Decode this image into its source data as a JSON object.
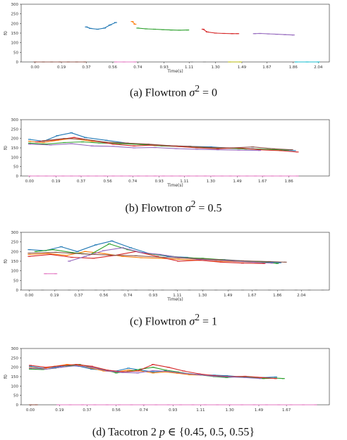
{
  "chart_data": [
    {
      "type": "line",
      "caption_prefix": "(a) Flowtron ",
      "caption_math": "σ",
      "caption_sup": "2",
      "caption_suffix": " = 0",
      "xlabel": "Time(s)",
      "ylabel": "f0",
      "xticks": [
        "0.00",
        "0.19",
        "0.37",
        "0.56",
        "0.74",
        "0.93",
        "1.11",
        "1.30",
        "1.49",
        "1.67",
        "1.86",
        "2.04"
      ],
      "yticks": [
        "0",
        "50",
        "100",
        "150",
        "200",
        "250",
        "300"
      ],
      "ylim": [
        0,
        300
      ],
      "xlim": [
        -0.1,
        2.12
      ],
      "grid": false,
      "series": [
        {
          "x": [
            0.37,
            0.4,
            0.45,
            0.5,
            0.54,
            0.58
          ],
          "y": [
            182,
            174,
            170,
            176,
            192,
            205
          ]
        },
        {
          "x": [
            0.7,
            0.72
          ],
          "y": [
            210,
            196
          ]
        },
        {
          "x": [
            0.74,
            0.8,
            0.86,
            0.92,
            0.98,
            1.04,
            1.1
          ],
          "y": [
            176,
            172,
            170,
            168,
            166,
            165,
            166
          ]
        },
        {
          "x": [
            1.21,
            1.24,
            1.3,
            1.36,
            1.42,
            1.46
          ],
          "y": [
            170,
            156,
            150,
            148,
            147,
            147
          ]
        },
        {
          "x": [
            1.58,
            1.62,
            1.68,
            1.74,
            1.8,
            1.86
          ],
          "y": [
            147,
            148,
            146,
            144,
            142,
            140
          ]
        },
        {
          "x": [
            0.0,
            0.06,
            0.12,
            0.18,
            0.24,
            0.3,
            0.36
          ],
          "y": [
            0,
            0,
            0,
            0,
            0,
            0,
            0
          ]
        },
        {
          "x": [
            0.58,
            0.64,
            0.72
          ],
          "y": [
            0,
            0,
            0
          ]
        },
        {
          "x": [
            1.13,
            1.22
          ],
          "y": [
            0,
            0
          ]
        },
        {
          "x": [
            1.4,
            1.48
          ],
          "y": [
            0,
            0
          ]
        },
        {
          "x": [
            1.88,
            1.96,
            2.04
          ],
          "y": [
            0,
            0,
            0
          ]
        }
      ]
    },
    {
      "type": "line",
      "caption_prefix": "(b) Flowtron ",
      "caption_math": "σ",
      "caption_sup": "2",
      "caption_suffix": " = 0.5",
      "xlabel": "Time(s)",
      "ylabel": "f0",
      "xticks": [
        "0.00",
        "0.19",
        "0.37",
        "0.56",
        "0.74",
        "0.93",
        "1.11",
        "1.30",
        "1.49",
        "1.67",
        "1.86"
      ],
      "yticks": [
        "0",
        "50",
        "100",
        "150",
        "200",
        "250",
        "300"
      ],
      "ylim": [
        0,
        300
      ],
      "xlim": [
        -0.06,
        2.15
      ],
      "grid": false,
      "series": [
        {
          "x": [
            0.0,
            0.1,
            0.2,
            0.3,
            0.4,
            0.55,
            0.7,
            0.85,
            1.0,
            1.15,
            1.3,
            1.45,
            1.6,
            1.75,
            1.9
          ],
          "y": [
            195,
            185,
            215,
            230,
            205,
            190,
            175,
            168,
            160,
            158,
            155,
            148,
            145,
            140,
            135
          ]
        },
        {
          "x": [
            0.0,
            0.1,
            0.2,
            0.3,
            0.45,
            0.6,
            0.75,
            0.9,
            1.05,
            1.2,
            1.35,
            1.5,
            1.65,
            1.8
          ],
          "y": [
            185,
            178,
            190,
            200,
            185,
            178,
            170,
            162,
            160,
            152,
            150,
            146,
            143,
            138
          ]
        },
        {
          "x": [
            0.0,
            0.12,
            0.25,
            0.38,
            0.5,
            0.65,
            0.8,
            0.95,
            1.1,
            1.25,
            1.4,
            1.55,
            1.7,
            1.85
          ],
          "y": [
            175,
            170,
            178,
            182,
            176,
            172,
            168,
            160,
            156,
            150,
            148,
            144,
            142,
            138
          ]
        },
        {
          "x": [
            0.05,
            0.18,
            0.32,
            0.46,
            0.6,
            0.75,
            0.9,
            1.05,
            1.2,
            1.35,
            1.5,
            1.65,
            1.8,
            1.92
          ],
          "y": [
            182,
            192,
            205,
            188,
            170,
            160,
            165,
            158,
            150,
            145,
            150,
            140,
            135,
            128
          ]
        },
        {
          "x": [
            0.0,
            0.15,
            0.3,
            0.45,
            0.6,
            0.75,
            0.9,
            1.05,
            1.2,
            1.35,
            1.5,
            1.65
          ],
          "y": [
            170,
            165,
            172,
            160,
            158,
            150,
            152,
            146,
            142,
            140,
            138,
            136
          ]
        },
        {
          "x": [
            0.1,
            0.25,
            0.4,
            0.55,
            0.7,
            0.85,
            1.0,
            1.15,
            1.3,
            1.45,
            1.6,
            1.75,
            1.88
          ],
          "y": [
            188,
            200,
            195,
            180,
            175,
            170,
            162,
            158,
            152,
            150,
            155,
            145,
            140
          ]
        },
        {
          "x": [
            0.0,
            0.06,
            0.12,
            0.18,
            0.24,
            0.3,
            0.36,
            0.42,
            0.48,
            0.54,
            0.6,
            0.66,
            0.72,
            0.78,
            0.84,
            0.9,
            0.96,
            1.02,
            1.08,
            1.14,
            1.2,
            1.26,
            1.32,
            1.38,
            1.44,
            1.5,
            1.56,
            1.62,
            1.68,
            1.74,
            1.8,
            1.86,
            1.92
          ],
          "y": [
            0,
            0,
            0,
            0,
            0,
            0,
            0,
            0,
            0,
            0,
            0,
            0,
            0,
            0,
            0,
            0,
            0,
            0,
            0,
            0,
            0,
            0,
            0,
            0,
            0,
            0,
            0,
            0,
            0,
            0,
            0,
            0,
            0
          ]
        }
      ]
    },
    {
      "type": "line",
      "caption_prefix": "(c) Flowtron ",
      "caption_math": "σ",
      "caption_sup": "2",
      "caption_suffix": " = 1",
      "xlabel": "Time(s)",
      "ylabel": "f0",
      "xticks": [
        "0.00",
        "0.19",
        "0.37",
        "0.56",
        "0.74",
        "0.93",
        "1.11",
        "1.30",
        "1.49",
        "1.67",
        "1.86",
        "2.04"
      ],
      "yticks": [
        "0",
        "50",
        "100",
        "150",
        "200",
        "250",
        "300"
      ],
      "ylim": [
        0,
        300
      ],
      "xlim": [
        -0.06,
        2.25
      ],
      "grid": false,
      "series": [
        {
          "x": [
            0.0,
            0.12,
            0.24,
            0.36,
            0.5,
            0.62,
            0.76,
            0.9,
            1.04,
            1.18,
            1.32,
            1.46,
            1.6,
            1.74,
            1.88
          ],
          "y": [
            210,
            205,
            225,
            200,
            235,
            255,
            220,
            190,
            175,
            170,
            160,
            158,
            152,
            148,
            142
          ]
        },
        {
          "x": [
            0.0,
            0.14,
            0.28,
            0.42,
            0.56,
            0.7,
            0.84,
            0.98,
            1.12,
            1.26,
            1.4,
            1.54,
            1.68,
            1.82
          ],
          "y": [
            185,
            190,
            180,
            200,
            190,
            175,
            168,
            165,
            160,
            155,
            150,
            148,
            145,
            140
          ]
        },
        {
          "x": [
            0.05,
            0.18,
            0.32,
            0.46,
            0.6,
            0.74,
            0.88,
            1.02,
            1.16,
            1.3,
            1.44,
            1.58,
            1.72,
            1.86
          ],
          "y": [
            200,
            210,
            195,
            185,
            240,
            210,
            190,
            180,
            168,
            165,
            158,
            150,
            148,
            138
          ]
        },
        {
          "x": [
            0.0,
            0.16,
            0.32,
            0.48,
            0.64,
            0.8,
            0.96,
            1.12,
            1.28,
            1.44,
            1.6,
            1.76
          ],
          "y": [
            175,
            185,
            170,
            165,
            180,
            200,
            175,
            150,
            155,
            145,
            140,
            138
          ]
        },
        {
          "x": [
            0.3,
            0.42,
            0.56,
            0.7,
            0.84,
            0.98,
            1.12,
            1.26,
            1.4,
            1.54,
            1.68,
            1.82
          ],
          "y": [
            150,
            175,
            205,
            220,
            195,
            185,
            170,
            160,
            155,
            150,
            145,
            140
          ]
        },
        {
          "x": [
            0.0,
            0.2,
            0.4,
            0.6,
            0.8,
            1.0,
            1.2,
            1.4,
            1.6,
            1.8,
            1.92
          ],
          "y": [
            192,
            196,
            188,
            182,
            178,
            170,
            165,
            158,
            152,
            148,
            145
          ]
        },
        {
          "x": [
            0.12,
            0.2
          ],
          "y": [
            85,
            85
          ]
        },
        {
          "x": [
            0.0,
            0.1,
            0.2,
            0.3,
            0.4,
            0.5,
            0.6,
            0.7,
            0.8,
            0.9,
            1.0,
            1.1,
            1.2,
            1.3,
            1.4,
            1.5,
            1.6,
            1.7,
            1.8,
            1.9,
            2.0,
            2.1,
            2.2
          ],
          "y": [
            0,
            0,
            0,
            0,
            0,
            0,
            0,
            0,
            0,
            0,
            0,
            0,
            0,
            0,
            0,
            0,
            0,
            0,
            0,
            0,
            0,
            0,
            0
          ]
        }
      ]
    },
    {
      "type": "line",
      "caption_prefix": "(d) Tacotron 2 ",
      "caption_math": "p",
      "caption_sup": "",
      "caption_suffix": " ∈ {0.45, 0.5, 0.55}",
      "xlabel": "",
      "ylabel": "f0",
      "xticks": [
        "0.00",
        "0.19",
        "0.37",
        "0.56",
        "0.74",
        "0.93",
        "1.11",
        "1.30",
        "1.49",
        "1.67"
      ],
      "yticks": [
        "0",
        "50",
        "100",
        "150",
        "200",
        "250",
        "300"
      ],
      "ylim": [
        0,
        300
      ],
      "xlim": [
        -0.06,
        1.95
      ],
      "grid": false,
      "series": [
        {
          "x": [
            0.0,
            0.08,
            0.16,
            0.24,
            0.32,
            0.4,
            0.48,
            0.56,
            0.64,
            0.72,
            0.8,
            0.88,
            0.96,
            1.04,
            1.12,
            1.2,
            1.28,
            1.36,
            1.44,
            1.52,
            1.6
          ],
          "y": [
            205,
            195,
            200,
            210,
            205,
            190,
            185,
            180,
            195,
            185,
            175,
            180,
            170,
            165,
            160,
            158,
            155,
            150,
            148,
            145,
            148
          ]
        },
        {
          "x": [
            0.0,
            0.08,
            0.16,
            0.24,
            0.32,
            0.4,
            0.48,
            0.56,
            0.64,
            0.72,
            0.8,
            0.88,
            0.96,
            1.04,
            1.12,
            1.2,
            1.28,
            1.36,
            1.44,
            1.52
          ],
          "y": [
            198,
            192,
            205,
            215,
            210,
            195,
            180,
            175,
            185,
            180,
            170,
            175,
            168,
            160,
            158,
            155,
            150,
            148,
            145,
            142
          ]
        },
        {
          "x": [
            0.0,
            0.08,
            0.16,
            0.24,
            0.32,
            0.4,
            0.48,
            0.56,
            0.64,
            0.72,
            0.8,
            0.88,
            0.96,
            1.04,
            1.12,
            1.2,
            1.28,
            1.36,
            1.44,
            1.52,
            1.6,
            1.65
          ],
          "y": [
            190,
            188,
            195,
            205,
            215,
            200,
            188,
            170,
            178,
            190,
            200,
            185,
            175,
            165,
            158,
            150,
            145,
            150,
            145,
            140,
            142,
            140
          ]
        },
        {
          "x": [
            0.0,
            0.1,
            0.2,
            0.3,
            0.4,
            0.5,
            0.6,
            0.7,
            0.8,
            0.9,
            1.0,
            1.1,
            1.2,
            1.3,
            1.4,
            1.5,
            1.6
          ],
          "y": [
            210,
            200,
            208,
            215,
            205,
            185,
            175,
            180,
            215,
            200,
            180,
            165,
            155,
            150,
            152,
            146,
            140
          ]
        },
        {
          "x": [
            0.0,
            0.1,
            0.2,
            0.3,
            0.4,
            0.5,
            0.6,
            0.7,
            0.8,
            0.9,
            1.0,
            1.1,
            1.2,
            1.3,
            1.4,
            1.5
          ],
          "y": [
            195,
            190,
            200,
            208,
            200,
            180,
            172,
            170,
            182,
            178,
            168,
            160,
            152,
            148,
            145,
            140
          ]
        },
        {
          "x": [
            0.0,
            0.04
          ],
          "y": [
            0,
            0
          ]
        },
        {
          "x": [
            0.18,
            0.26,
            0.34,
            0.42,
            0.5,
            0.58,
            0.66,
            0.74,
            0.82,
            0.9,
            0.98,
            1.06,
            1.14,
            1.22,
            1.3,
            1.38,
            1.46,
            1.54,
            1.62,
            1.7,
            1.78,
            1.86
          ],
          "y": [
            0,
            0,
            0,
            0,
            0,
            0,
            0,
            0,
            0,
            0,
            0,
            0,
            0,
            0,
            0,
            0,
            0,
            0,
            0,
            0,
            0,
            0
          ]
        }
      ]
    }
  ],
  "colors": [
    "#1f77b4",
    "#ff7f0e",
    "#2ca02c",
    "#d62728",
    "#9467bd",
    "#8c564b",
    "#e377c2",
    "#7f7f7f",
    "#bcbd22",
    "#17becf"
  ]
}
